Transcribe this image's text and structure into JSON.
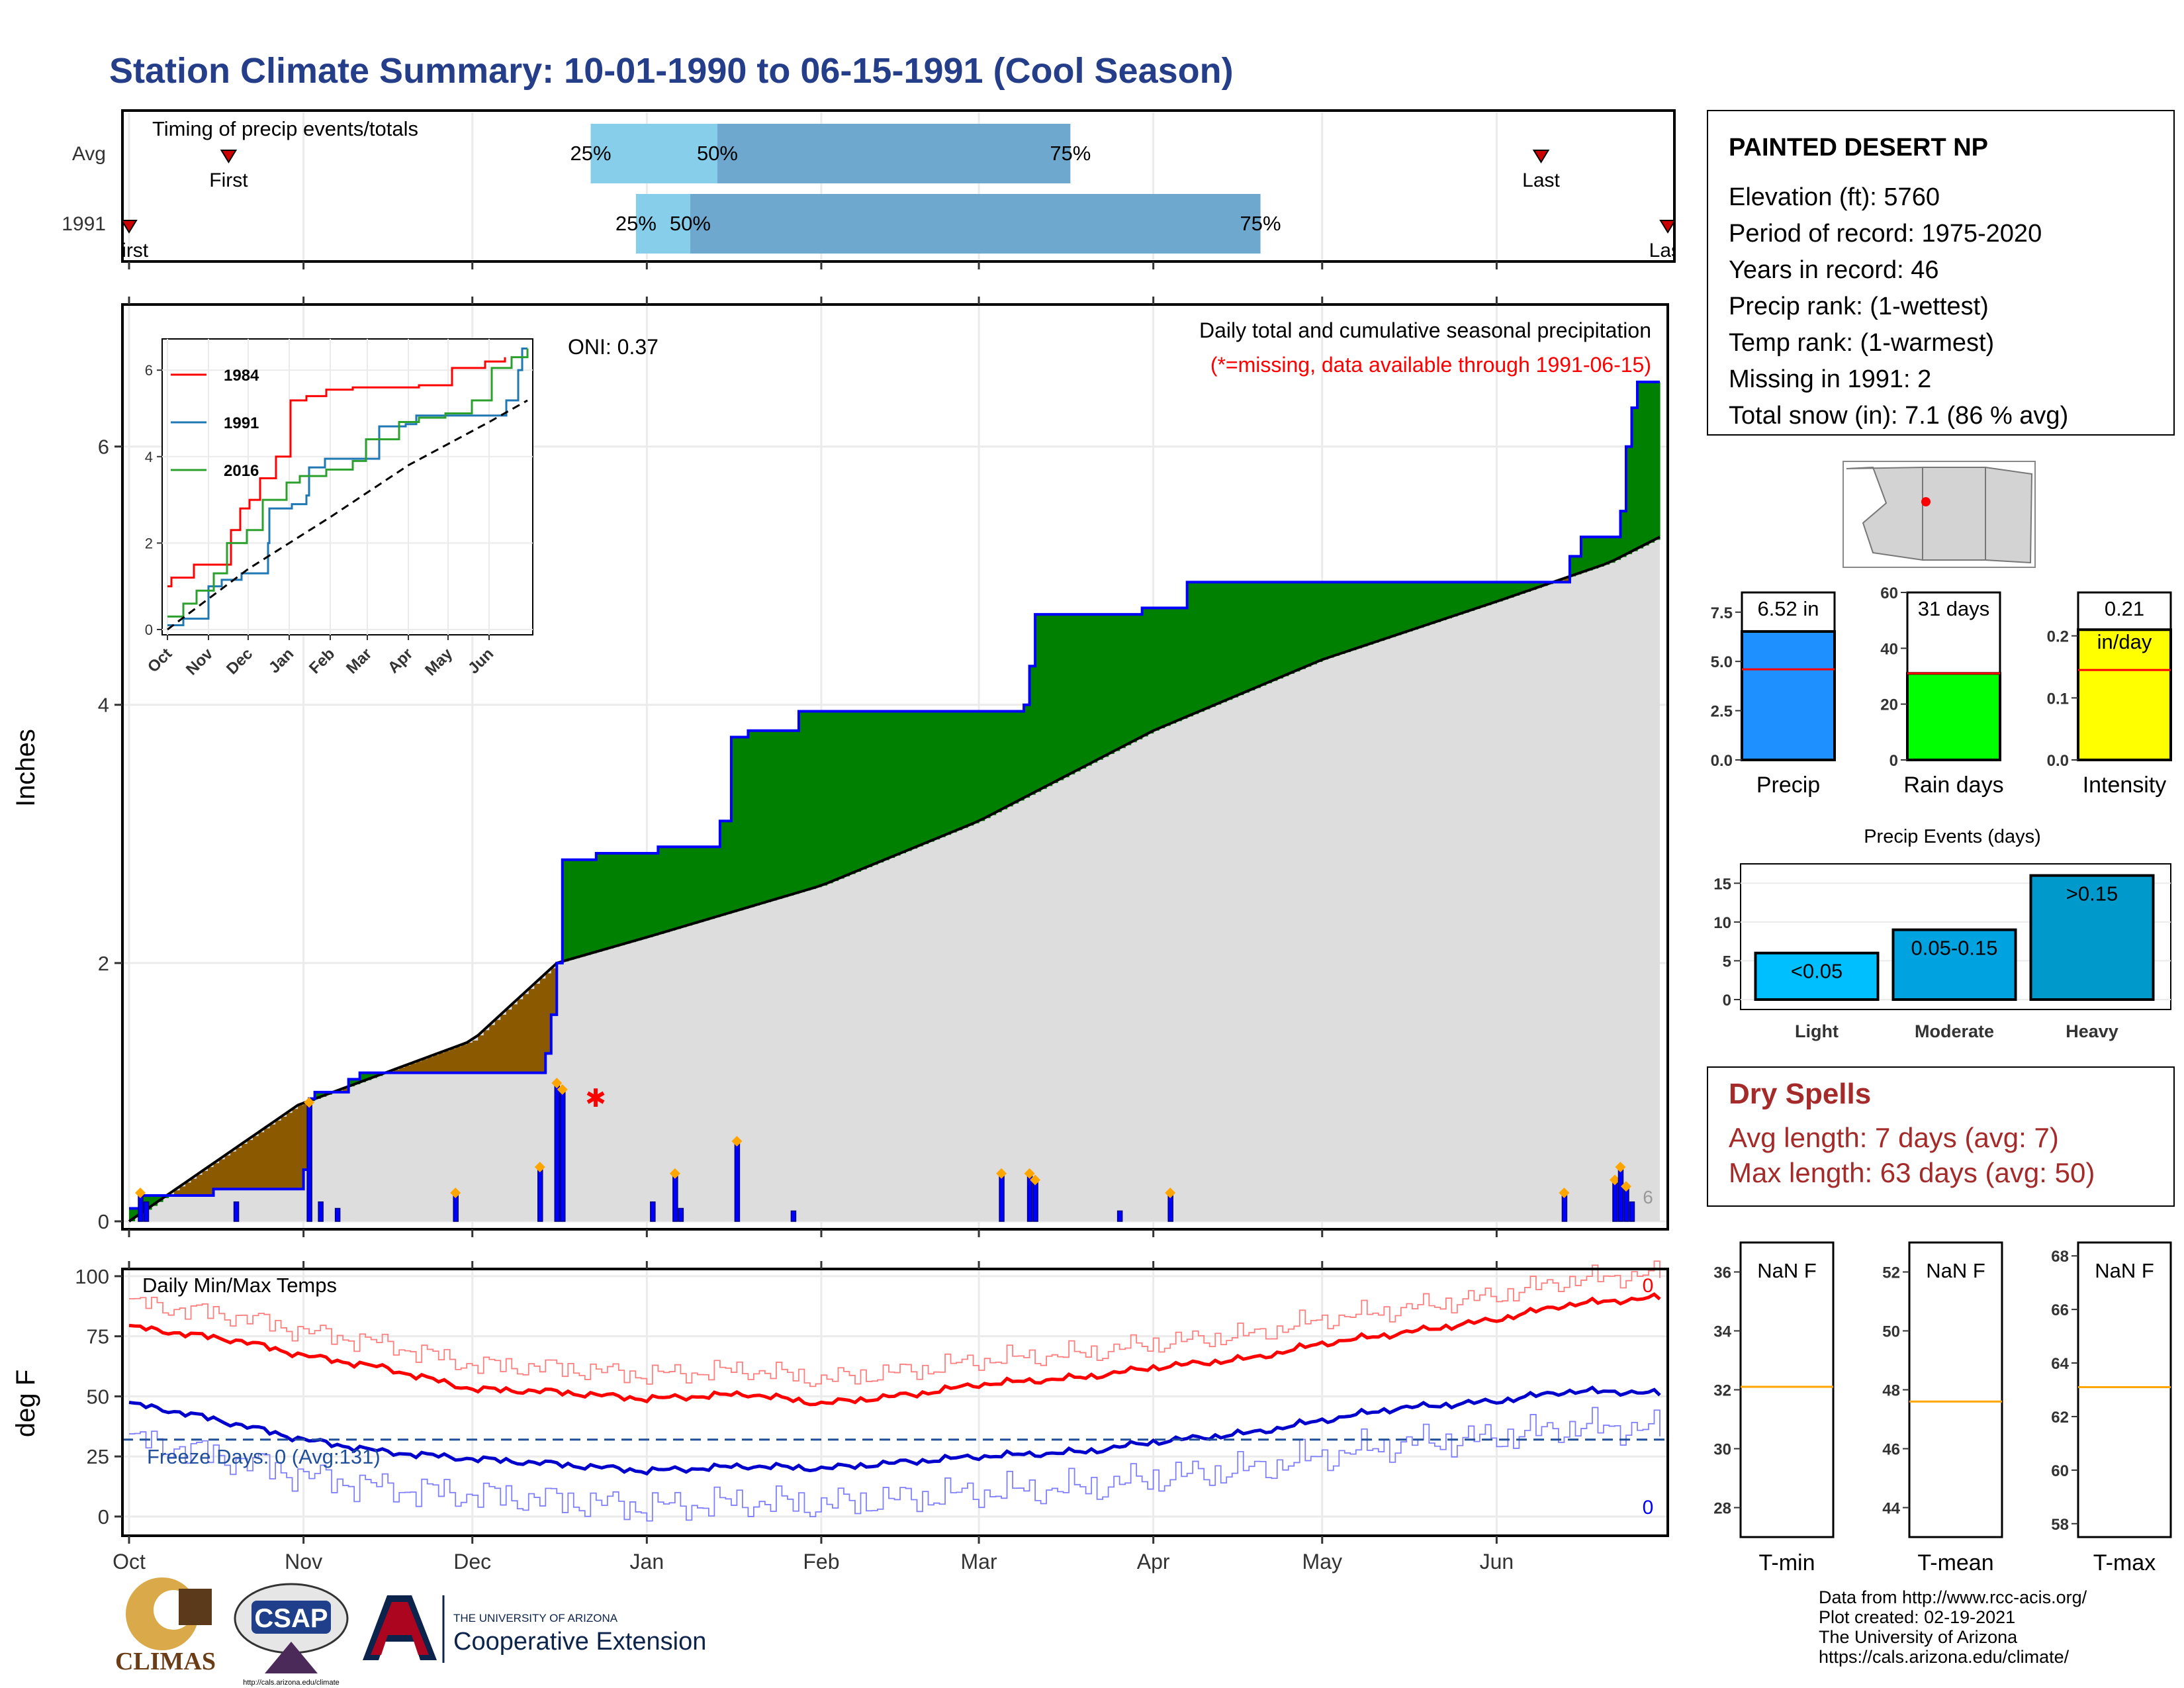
{
  "title": "Station Climate Summary: 10-01-1990 to 06-15-1991 (Cool Season)",
  "timing": {
    "label": "Timing of precip events/totals",
    "rows": [
      {
        "name": "Avg",
        "first_label": "First",
        "last_label": "Last",
        "first": 0.55,
        "last": 7.8,
        "p25": 2.55,
        "p50": 3.25,
        "p75": 5.2
      },
      {
        "name": "1991",
        "first_label": "First",
        "last_label": "Last",
        "first": 0.0,
        "last": 8.5,
        "p25": 2.8,
        "p50": 3.1,
        "p75": 6.25
      }
    ],
    "p25_label": "25%",
    "p50_label": "50%",
    "p75_label": "75%"
  },
  "station": {
    "name": "PAINTED DESERT NP",
    "lines": [
      "Elevation (ft): 5760",
      "Period of record: 1975-2020",
      "Years in record: 46",
      "Precip rank:  (1-wettest)",
      "Temp rank:  (1-warmest)",
      "Missing in 1991: 2",
      "Total snow (in): 7.1 (86 % avg)"
    ]
  },
  "main_chart": {
    "ylabel": "Inches",
    "oni": "ONI: 0.37",
    "caption": "Daily total and cumulative seasonal precipitation",
    "missing_note": "(*=missing, data available through 1991-06-15)",
    "yticks": [
      "0",
      "2",
      "4",
      "6"
    ],
    "ylim": [
      0,
      7.1
    ],
    "daily_marker_label": "6",
    "colors": {
      "above": "#008000",
      "below": "#8B5A00",
      "avg": "#dddddd",
      "obs": "#0000ff"
    }
  },
  "chart_data": {
    "type": "area",
    "x": [
      "Oct",
      "Nov",
      "Dec",
      "Jan",
      "Feb",
      "Mar",
      "Apr",
      "May",
      "Jun"
    ],
    "cumulative_obs": [
      [
        0,
        0.1
      ],
      [
        2,
        0.2
      ],
      [
        12,
        0.2
      ],
      [
        15,
        0.25
      ],
      [
        31,
        0.4
      ],
      [
        32,
        0.95
      ],
      [
        33,
        1.0
      ],
      [
        39,
        1.1
      ],
      [
        41,
        1.15
      ],
      [
        56,
        1.15
      ],
      [
        74,
        1.3
      ],
      [
        75,
        1.6
      ],
      [
        76,
        2.0
      ],
      [
        77,
        2.8
      ],
      [
        83,
        2.85
      ],
      [
        92,
        2.85
      ],
      [
        94,
        2.9
      ],
      [
        104,
        2.9
      ],
      [
        105,
        3.1
      ],
      [
        107,
        3.75
      ],
      [
        110,
        3.8
      ],
      [
        119,
        3.95
      ],
      [
        133,
        3.95
      ],
      [
        153,
        3.95
      ],
      [
        159,
        4.0
      ],
      [
        160,
        4.3
      ],
      [
        161,
        4.7
      ],
      [
        172,
        4.7
      ],
      [
        180,
        4.75
      ],
      [
        187,
        4.75
      ],
      [
        188,
        4.95
      ],
      [
        250,
        4.95
      ],
      [
        256,
        5.15
      ],
      [
        258,
        5.3
      ],
      [
        264,
        5.3
      ],
      [
        265,
        5.5
      ],
      [
        266,
        6.0
      ],
      [
        267,
        6.3
      ],
      [
        268,
        6.5
      ],
      [
        272,
        6.5
      ]
    ],
    "cumulative_avg": [
      [
        0,
        0
      ],
      [
        30,
        0.9
      ],
      [
        61,
        1.4
      ],
      [
        76,
        2.0
      ],
      [
        92,
        2.2
      ],
      [
        123,
        2.6
      ],
      [
        151,
        3.1
      ],
      [
        182,
        3.8
      ],
      [
        212,
        4.35
      ],
      [
        243,
        4.8
      ],
      [
        263,
        5.1
      ],
      [
        272,
        5.3
      ]
    ],
    "daily_precip": [
      [
        2,
        0.2
      ],
      [
        3,
        0.15
      ],
      [
        19,
        0.15
      ],
      [
        32,
        0.9
      ],
      [
        34,
        0.15
      ],
      [
        37,
        0.1
      ],
      [
        58,
        0.2
      ],
      [
        73,
        0.4
      ],
      [
        76,
        1.05
      ],
      [
        77,
        1.0
      ],
      [
        93,
        0.15
      ],
      [
        97,
        0.35
      ],
      [
        98,
        0.1
      ],
      [
        108,
        0.6
      ],
      [
        118,
        0.08
      ],
      [
        155,
        0.35
      ],
      [
        160,
        0.35
      ],
      [
        161,
        0.3
      ],
      [
        176,
        0.08
      ],
      [
        185,
        0.2
      ],
      [
        255,
        0.2
      ],
      [
        264,
        0.3
      ],
      [
        265,
        0.4
      ],
      [
        266,
        0.25
      ],
      [
        267,
        0.15
      ]
    ],
    "inset": {
      "xticks": [
        "Oct",
        "Nov",
        "Dec",
        "Jan",
        "Feb",
        "Mar",
        "Apr",
        "May",
        "Jun"
      ],
      "yticks": [
        "0",
        "2",
        "4",
        "6"
      ],
      "ylim": [
        0,
        6.6
      ],
      "series": [
        {
          "name": "1984",
          "color": "#ff0000",
          "values": [
            [
              0,
              1.0
            ],
            [
              3,
              1.2
            ],
            [
              10,
              1.2
            ],
            [
              20,
              1.5
            ],
            [
              35,
              1.5
            ],
            [
              48,
              2.3
            ],
            [
              55,
              2.8
            ],
            [
              62,
              3.0
            ],
            [
              70,
              3.5
            ],
            [
              82,
              4.0
            ],
            [
              93,
              5.3
            ],
            [
              105,
              5.4
            ],
            [
              120,
              5.55
            ],
            [
              140,
              5.6
            ],
            [
              165,
              5.6
            ],
            [
              190,
              5.65
            ],
            [
              215,
              6.05
            ],
            [
              240,
              6.2
            ],
            [
              255,
              6.3
            ]
          ]
        },
        {
          "name": "1991",
          "color": "#1f77b4",
          "values": [
            [
              0,
              0.1
            ],
            [
              12,
              0.25
            ],
            [
              31,
              1.0
            ],
            [
              41,
              1.15
            ],
            [
              56,
              1.3
            ],
            [
              76,
              2.0
            ],
            [
              77,
              2.8
            ],
            [
              94,
              2.9
            ],
            [
              105,
              3.1
            ],
            [
              107,
              3.75
            ],
            [
              119,
              3.95
            ],
            [
              153,
              3.95
            ],
            [
              160,
              4.7
            ],
            [
              180,
              4.75
            ],
            [
              188,
              4.95
            ],
            [
              250,
              4.95
            ],
            [
              256,
              5.3
            ],
            [
              265,
              6.0
            ],
            [
              268,
              6.5
            ],
            [
              272,
              6.5
            ]
          ]
        },
        {
          "name": "2016",
          "color": "#2ca02c",
          "values": [
            [
              0,
              0.3
            ],
            [
              12,
              0.6
            ],
            [
              22,
              0.9
            ],
            [
              35,
              1.3
            ],
            [
              45,
              2.0
            ],
            [
              60,
              2.3
            ],
            [
              72,
              3.0
            ],
            [
              90,
              3.4
            ],
            [
              100,
              3.55
            ],
            [
              120,
              3.7
            ],
            [
              140,
              3.9
            ],
            [
              150,
              4.4
            ],
            [
              175,
              4.8
            ],
            [
              190,
              4.9
            ],
            [
              210,
              5.0
            ],
            [
              230,
              5.3
            ],
            [
              245,
              6.05
            ],
            [
              260,
              6.3
            ],
            [
              272,
              6.5
            ]
          ]
        },
        {
          "name": "",
          "color": "#000000",
          "values": [
            [
              0,
              0
            ],
            [
              61,
              1.4
            ],
            [
              123,
              2.6
            ],
            [
              182,
              3.8
            ],
            [
              243,
              4.8
            ],
            [
              272,
              5.3
            ]
          ]
        }
      ]
    },
    "temps": {
      "label": "Daily Min/Max Temps",
      "ylabel": "deg F",
      "yticks": [
        "0",
        "25",
        "50",
        "75",
        "100"
      ],
      "ylim": [
        -8,
        103
      ],
      "freeze_label": "Freeze Days: 0 (Avg:131)",
      "freeze_line": 32,
      "max_count": "0",
      "min_count": "0",
      "avg_max": [
        [
          0,
          79
        ],
        [
          10,
          76
        ],
        [
          20,
          73
        ],
        [
          31,
          67
        ],
        [
          45,
          62
        ],
        [
          61,
          53
        ],
        [
          75,
          52
        ],
        [
          92,
          49
        ],
        [
          110,
          51
        ],
        [
          123,
          47
        ],
        [
          140,
          51
        ],
        [
          151,
          55
        ],
        [
          170,
          58
        ],
        [
          182,
          62
        ],
        [
          200,
          66
        ],
        [
          212,
          72
        ],
        [
          225,
          76
        ],
        [
          243,
          82
        ],
        [
          255,
          88
        ],
        [
          265,
          90
        ],
        [
          272,
          91
        ]
      ],
      "avg_min": [
        [
          0,
          47
        ],
        [
          10,
          43
        ],
        [
          20,
          38
        ],
        [
          31,
          32
        ],
        [
          45,
          27
        ],
        [
          61,
          24
        ],
        [
          75,
          22
        ],
        [
          92,
          19
        ],
        [
          110,
          21
        ],
        [
          123,
          20
        ],
        [
          140,
          23
        ],
        [
          151,
          25
        ],
        [
          170,
          27
        ],
        [
          182,
          31
        ],
        [
          200,
          35
        ],
        [
          212,
          40
        ],
        [
          225,
          45
        ],
        [
          243,
          48
        ],
        [
          255,
          52
        ],
        [
          265,
          52
        ],
        [
          272,
          51
        ]
      ]
    },
    "right_bars": [
      {
        "name": "Precip",
        "value": 6.52,
        "avg": 4.6,
        "ylim": [
          0,
          8.5
        ],
        "yticks": [
          "0.0",
          "2.5",
          "5.0",
          "7.5"
        ],
        "label_lines": [
          "6.52 in"
        ],
        "color": "#1e90ff"
      },
      {
        "name": "Rain days",
        "value": 31,
        "avg": 31,
        "ylim": [
          0,
          60
        ],
        "yticks": [
          "0",
          "20",
          "40",
          "60"
        ],
        "label_lines": [
          "31 days"
        ],
        "color": "#00ff00"
      },
      {
        "name": "Intensity",
        "value": 0.21,
        "avg": 0.145,
        "ylim": [
          0,
          0.27
        ],
        "yticks": [
          "0.0",
          "0.1",
          "0.2"
        ],
        "label_lines": [
          "0.21",
          "in/day"
        ],
        "color": "#ffff00"
      }
    ],
    "events": {
      "title": "Precip Events (days)",
      "categories": [
        "Light",
        "Moderate",
        "Heavy"
      ],
      "values": [
        6,
        9,
        16
      ],
      "bar_labels": [
        "<0.05",
        "0.05-0.15",
        ">0.15"
      ],
      "yticks": [
        "0",
        "5",
        "10",
        "15"
      ],
      "ylim": [
        0,
        17.5
      ]
    },
    "temp_boxes": [
      {
        "name": "T-min",
        "value": "NaN F",
        "yticks": [
          "28",
          "30",
          "32",
          "34",
          "36"
        ],
        "ylim": [
          27,
          37
        ],
        "line": 32.1
      },
      {
        "name": "T-mean",
        "value": "NaN F",
        "yticks": [
          "44",
          "46",
          "48",
          "50",
          "52"
        ],
        "ylim": [
          43,
          53
        ],
        "line": 47.6
      },
      {
        "name": "T-max",
        "value": "NaN F",
        "yticks": [
          "58",
          "60",
          "62",
          "64",
          "66",
          "68"
        ],
        "ylim": [
          57.5,
          68.5
        ],
        "line": 63.1
      }
    ]
  },
  "dry_spells": {
    "title": "Dry Spells",
    "avg_line": "Avg length: 7 days (avg: 7)",
    "max_line": "Max length: 63 days (avg: 50)"
  },
  "footer": {
    "lines": [
      "Data from http://www.rcc-acis.org/",
      "Plot created: 02-19-2021",
      "The University of Arizona",
      "https://cals.arizona.edu/climate/"
    ],
    "logo1": "CLIMAS",
    "logo2": "CSAP",
    "logo2_url": "http://cals.arizona.edu/climate",
    "logo3_top": "THE UNIVERSITY OF ARIZONA",
    "logo3_bottom": "Cooperative Extension"
  }
}
